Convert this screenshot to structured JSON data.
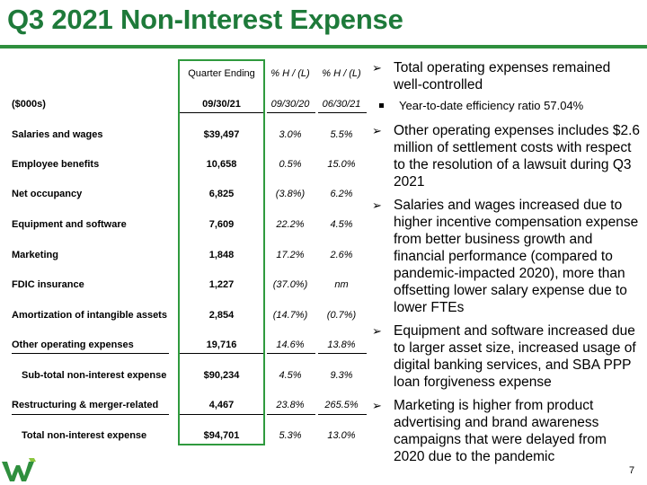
{
  "title": "Q3 2021 Non-Interest Expense",
  "page_number": "7",
  "colors": {
    "brand_green": "#1e7a3a",
    "highlight_border": "#2f9a3e"
  },
  "logo": {
    "icon": "webster-w-logo-icon"
  },
  "table": {
    "header1": {
      "c1": "Quarter Ending",
      "c2": "% H / (L)",
      "c3": "% H / (L)"
    },
    "header2": {
      "c0": "($000s)",
      "c1": "09/30/21",
      "c2": "09/30/20",
      "c3": "06/30/21"
    },
    "rows": [
      {
        "label": "Salaries and wages",
        "value": "$39,497",
        "yoy": "3.0%",
        "qoq": "5.5%"
      },
      {
        "label": "Employee benefits",
        "value": "10,658",
        "yoy": "0.5%",
        "qoq": "15.0%"
      },
      {
        "label": "Net occupancy",
        "value": "6,825",
        "yoy": "(3.8%)",
        "qoq": "6.2%"
      },
      {
        "label": "Equipment and software",
        "value": "7,609",
        "yoy": "22.2%",
        "qoq": "4.5%"
      },
      {
        "label": "Marketing",
        "value": "1,848",
        "yoy": "17.2%",
        "qoq": "2.6%"
      },
      {
        "label": "FDIC insurance",
        "value": "1,227",
        "yoy": "(37.0%)",
        "qoq": "nm"
      },
      {
        "label": "Amortization of intangible assets",
        "value": "2,854",
        "yoy": "(14.7%)",
        "qoq": "(0.7%)"
      },
      {
        "label": "Other operating expenses",
        "value": "19,716",
        "yoy": "14.6%",
        "qoq": "13.8%"
      },
      {
        "label": "Sub-total non-interest expense",
        "value": "$90,234",
        "yoy": "4.5%",
        "qoq": "9.3%"
      },
      {
        "label": "Restructuring & merger-related",
        "value": "4,467",
        "yoy": "23.8%",
        "qoq": "265.5%"
      },
      {
        "label": "Total non-interest expense",
        "value": "$94,701",
        "yoy": "5.3%",
        "qoq": "13.0%"
      }
    ]
  },
  "bullets": [
    {
      "text": "Total operating expenses remained well-controlled",
      "sub": [
        "Year-to-date efficiency ratio 57.04%"
      ]
    },
    {
      "text": "Other operating expenses includes $2.6 million of settlement costs with respect to the resolution of a lawsuit during Q3 2021"
    },
    {
      "text": "Salaries and wages increased due to higher incentive compensation expense from better business growth and financial performance (compared to pandemic-impacted 2020), more than offsetting lower salary expense due to lower FTEs"
    },
    {
      "text": "Equipment and software increased due to larger asset size, increased usage of digital banking services, and SBA PPP loan forgiveness expense"
    },
    {
      "text": "Marketing is higher from product advertising and brand awareness campaigns that were delayed from 2020 due to the pandemic"
    }
  ]
}
